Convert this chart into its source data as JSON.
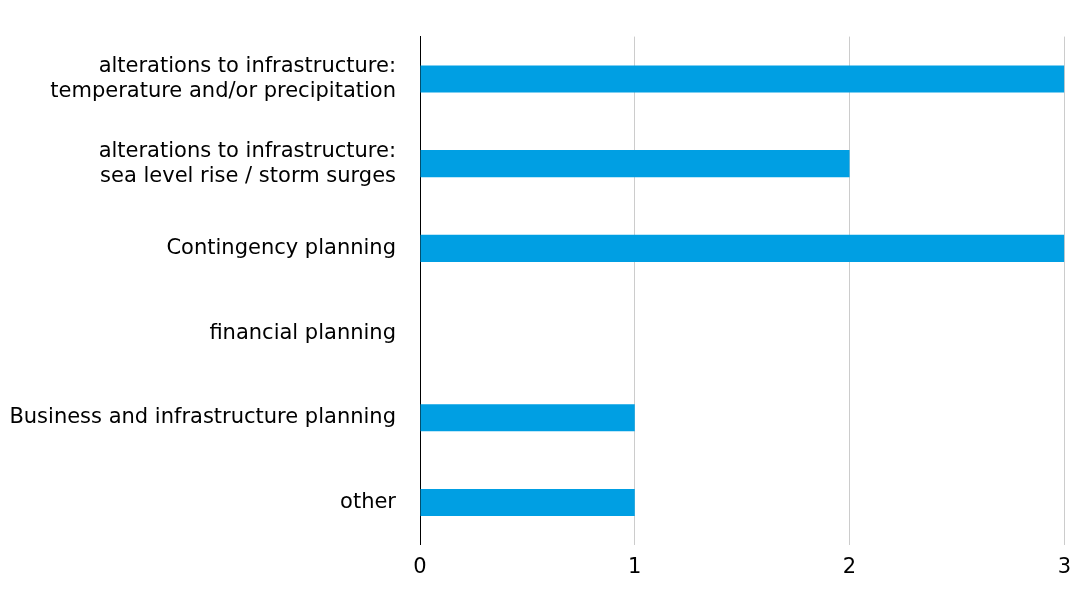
{
  "chart_data": {
    "type": "bar",
    "orientation": "horizontal",
    "categories": [
      "alterations to infrastructure: temperature and/or precipitation",
      "alterations to infrastructure: sea level rise / storm surges",
      "Contingency planning",
      "financial planning",
      "Business and infrastructure planning",
      "other"
    ],
    "values": [
      3,
      2,
      3,
      0,
      1,
      1
    ],
    "color": "#009fe3",
    "xlim": [
      0,
      3
    ],
    "xticks": [
      0,
      1,
      2,
      3
    ],
    "grid": "x",
    "legend": false
  }
}
